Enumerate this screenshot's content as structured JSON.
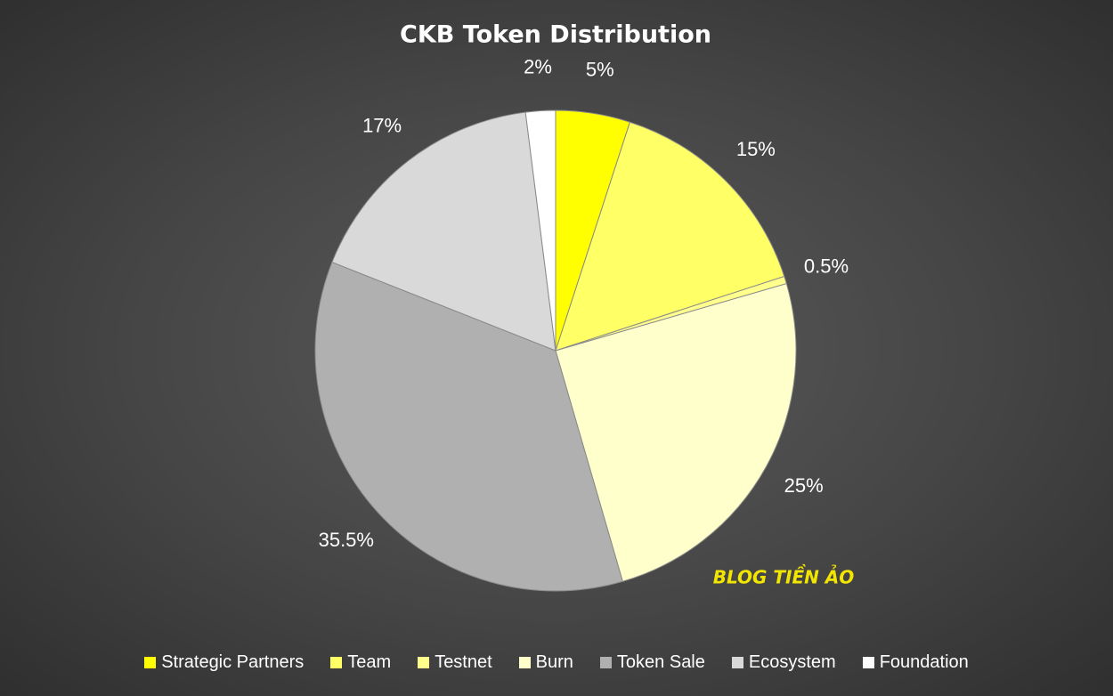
{
  "chart_data": {
    "type": "pie",
    "title": "CKB Token Distribution",
    "categories": [
      "Strategic Partners",
      "Team",
      "Testnet",
      "Burn",
      "Token Sale",
      "Ecosystem",
      "Foundation"
    ],
    "values": [
      5,
      15,
      0.5,
      25,
      35.5,
      17,
      2
    ],
    "value_labels": [
      "5%",
      "15%",
      "0.5%",
      "25%",
      "35.5%",
      "17%",
      "2%"
    ],
    "colors": [
      "#ffff00",
      "#ffff66",
      "#ffff8c",
      "#ffffcc",
      "#b0b0b0",
      "#d9d9d9",
      "#ffffff"
    ],
    "legend": "bottom",
    "watermark": "BLOG TIỀN ẢO"
  }
}
